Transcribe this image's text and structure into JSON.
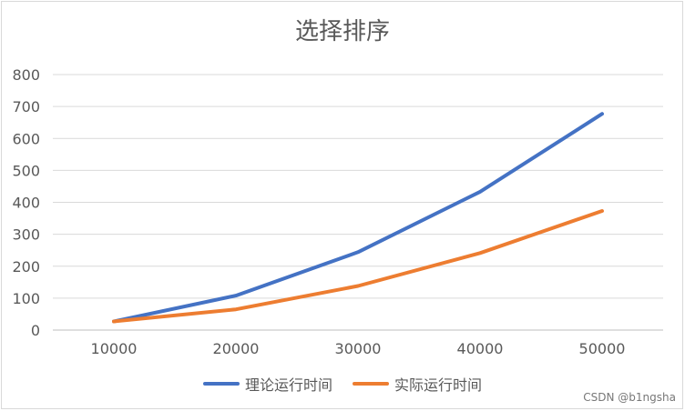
{
  "chart_data": {
    "type": "line",
    "title": "选择排序",
    "categories": [
      "10000",
      "20000",
      "30000",
      "40000",
      "50000"
    ],
    "y_ticks": [
      "0",
      "100",
      "200",
      "300",
      "400",
      "500",
      "600",
      "700",
      "800"
    ],
    "ylim": [
      0,
      800
    ],
    "grid": true,
    "legend_position": "bottom",
    "series": [
      {
        "name": "理论运行时间",
        "values": [
          27,
          108,
          244,
          433,
          677
        ],
        "color": "#4472c4"
      },
      {
        "name": "实际运行时间",
        "values": [
          27,
          65,
          138,
          241,
          373
        ],
        "color": "#ed7d31"
      }
    ]
  },
  "watermark": "CSDN @b1ngsha"
}
